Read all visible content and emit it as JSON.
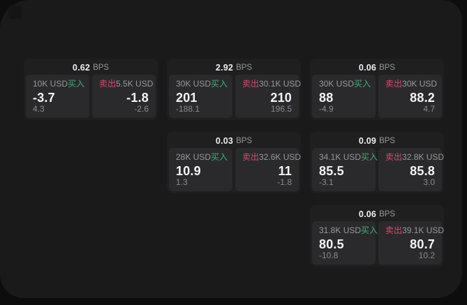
{
  "labels": {
    "bps_suffix": "BPS",
    "buy": "买入",
    "sell": "卖出"
  },
  "colors": {
    "page_bg": "#0d0d0e",
    "panel_bg": "#1a1a1b",
    "card_bg": "#1f1f20",
    "tile_bg": "#2a2a2c",
    "buy_green": "#3dae74",
    "sell_red": "#d84a6b",
    "value_white": "#f4f4f4",
    "label_gray": "#98989a",
    "muted_gray": "#8b8b8d"
  },
  "cards": [
    {
      "bps": "0.62",
      "buy": {
        "size": "10K USD",
        "price": "-3.7",
        "delta": "4.3"
      },
      "sell": {
        "size": "5.5K USD",
        "price": "-1.8",
        "delta": "-2.6"
      }
    },
    {
      "bps": "2.92",
      "buy": {
        "size": "30K USD",
        "price": "201",
        "delta": "-188.1"
      },
      "sell": {
        "size": "30.1K USD",
        "price": "210",
        "delta": "196.5"
      }
    },
    {
      "bps": "0.06",
      "buy": {
        "size": "30K USD",
        "price": "88",
        "delta": "-4.9"
      },
      "sell": {
        "size": "30K USD",
        "price": "88.2",
        "delta": "4.7"
      }
    },
    {
      "bps": "0.03",
      "buy": {
        "size": "28K USD",
        "price": "10.9",
        "delta": "1.3"
      },
      "sell": {
        "size": "32.6K USD",
        "price": "11",
        "delta": "-1.8"
      }
    },
    {
      "bps": "0.09",
      "buy": {
        "size": "34.1K USD",
        "price": "85.5",
        "delta": "-3.1"
      },
      "sell": {
        "size": "32.8K USD",
        "price": "85.8",
        "delta": "3.0"
      }
    },
    {
      "bps": "0.06",
      "buy": {
        "size": "31.8K USD",
        "price": "80.5",
        "delta": "-10.8"
      },
      "sell": {
        "size": "39.1K USD",
        "price": "80.7",
        "delta": "10.2"
      }
    }
  ]
}
